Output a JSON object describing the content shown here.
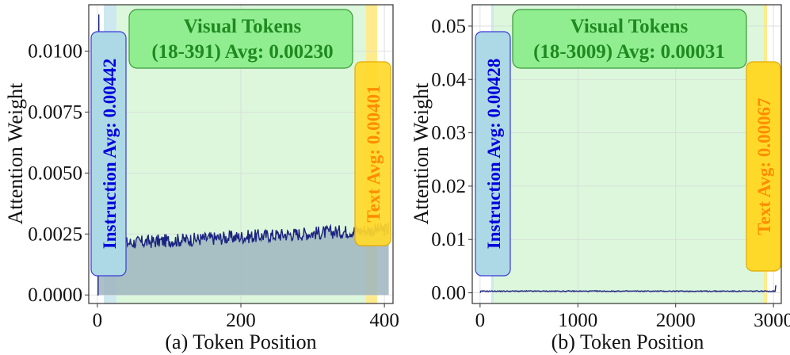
{
  "chart_data": [
    {
      "type": "line",
      "panel": "a",
      "xlabel": "(a) Token Position",
      "ylabel": "Attention Weight",
      "xlim": [
        -12,
        412
      ],
      "ylim": [
        -0.00035,
        0.0119
      ],
      "xticks": [
        0,
        200,
        400
      ],
      "xtick_labels": [
        "0",
        "200",
        "400"
      ],
      "yticks": [
        0.0,
        0.0025,
        0.005,
        0.0075,
        0.01
      ],
      "ytick_labels": [
        "0.0000",
        "0.0025",
        "0.0050",
        "0.0075",
        "0.0100"
      ],
      "regions": {
        "instruction": {
          "range": [
            0,
            17
          ],
          "label": "Instruction Avg: 0.00442"
        },
        "visual": {
          "range": [
            18,
            391
          ],
          "title": "Visual Tokens",
          "label": "(18-391) Avg: 0.00230"
        },
        "text": {
          "range": [
            392,
            406
          ],
          "label": "Text Avg: 0.00401"
        }
      },
      "series": [
        {
          "name": "attention",
          "x_start": 0,
          "x_end": 406,
          "base": 0.0021,
          "trend_end": 0.0027,
          "noise": 0.00028,
          "spike_x": 2,
          "spike_y": 0.0115,
          "tail": 0.003
        }
      ]
    },
    {
      "type": "line",
      "panel": "b",
      "xlabel": "(b) Token Position",
      "ylabel": "Attention Weight",
      "xlim": [
        -80,
        3080
      ],
      "ylim": [
        -0.002,
        0.054
      ],
      "xticks": [
        0,
        1000,
        2000,
        3000
      ],
      "xtick_labels": [
        "0",
        "1000",
        "2000",
        "3000"
      ],
      "yticks": [
        0.0,
        0.01,
        0.02,
        0.03,
        0.04,
        0.05
      ],
      "ytick_labels": [
        "0.00",
        "0.01",
        "0.02",
        "0.03",
        "0.04",
        "0.05"
      ],
      "regions": {
        "instruction": {
          "range": [
            0,
            17
          ],
          "label": "Instruction Avg: 0.00428"
        },
        "visual": {
          "range": [
            18,
            3009
          ],
          "title": "Visual Tokens",
          "label": "(18-3009) Avg: 0.00031"
        },
        "text": {
          "range": [
            3010,
            3024
          ],
          "label": "Text Avg: 0.00067"
        }
      },
      "series": [
        {
          "name": "attention",
          "x_start": 0,
          "x_end": 3024,
          "base": 0.00031,
          "trend_end": 0.00031,
          "noise": 8e-05,
          "spike_x": 2,
          "spike_y": 0.0535,
          "tail": 0.0014
        }
      ]
    }
  ],
  "colors": {
    "instruction_fill": "#add8e6",
    "instruction_edge": "#3a3ad8",
    "instruction_text": "#0000dd",
    "visual_fill": "#dcf7dc",
    "visual_box": "#90ee90",
    "visual_edge": "#3a9a3a",
    "visual_text": "#1f8a1f",
    "text_fill": "#ffe87a",
    "text_box": "#ffd92a",
    "text_edge": "#e6a800",
    "text_text": "#ff8c00",
    "line": "#1a237e",
    "area": "#9fb5c0"
  }
}
